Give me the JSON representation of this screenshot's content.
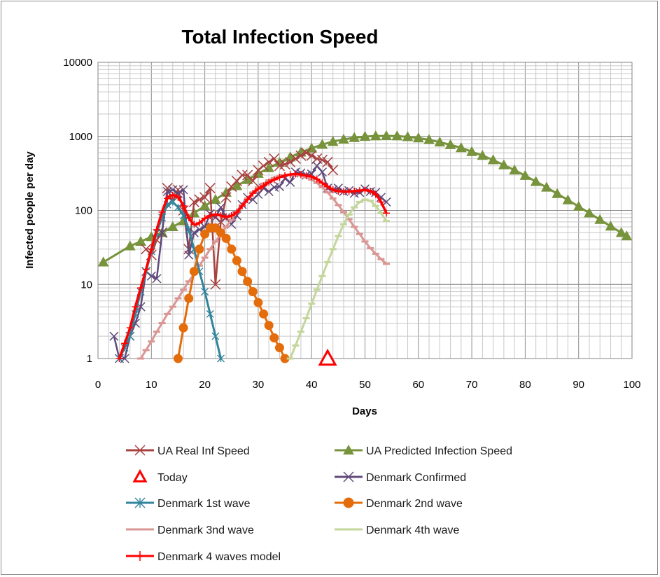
{
  "chart_data": {
    "type": "line",
    "title": "Total Infection Speed",
    "xlabel": "Days",
    "ylabel": "Infected people per day",
    "xlim": [
      0,
      100
    ],
    "ylim": [
      1,
      10000
    ],
    "y_scale": "log",
    "grid": true,
    "legend": "bottom",
    "x_ticks": [
      "0",
      "10",
      "20",
      "30",
      "40",
      "50",
      "60",
      "70",
      "80",
      "90",
      "100"
    ],
    "y_ticks": [
      "1",
      "10",
      "100",
      "1000",
      "10000"
    ],
    "series": [
      {
        "name": "UA Real Inf Speed",
        "color": "#a84240",
        "marker": "x",
        "points": [
          [
            9,
            30
          ],
          [
            10,
            25
          ],
          [
            11,
            40
          ],
          [
            12,
            50
          ],
          [
            13,
            200
          ],
          [
            14,
            130
          ],
          [
            15,
            190
          ],
          [
            16,
            100
          ],
          [
            17,
            30
          ],
          [
            18,
            130
          ],
          [
            19,
            140
          ],
          [
            20,
            150
          ],
          [
            21,
            200
          ],
          [
            22,
            10
          ],
          [
            23,
            70
          ],
          [
            24,
            150
          ],
          [
            25,
            210
          ],
          [
            26,
            250
          ],
          [
            27,
            300
          ],
          [
            28,
            300
          ],
          [
            29,
            250
          ],
          [
            30,
            350
          ],
          [
            31,
            400
          ],
          [
            32,
            450
          ],
          [
            33,
            500
          ],
          [
            34,
            400
          ],
          [
            35,
            420
          ],
          [
            36,
            450
          ],
          [
            37,
            500
          ],
          [
            38,
            550
          ],
          [
            39,
            600
          ],
          [
            40,
            550
          ],
          [
            41,
            500
          ],
          [
            42,
            480
          ],
          [
            43,
            450
          ],
          [
            44,
            350
          ]
        ]
      },
      {
        "name": "UA Predicted Infection Speed",
        "color": "#77933c",
        "marker": "triangle",
        "points": [
          [
            1,
            20
          ],
          [
            6,
            33
          ],
          [
            8,
            38
          ],
          [
            10,
            44
          ],
          [
            12,
            50
          ],
          [
            14,
            60
          ],
          [
            16,
            72
          ],
          [
            18,
            92
          ],
          [
            20,
            115
          ],
          [
            22,
            140
          ],
          [
            24,
            175
          ],
          [
            26,
            215
          ],
          [
            28,
            260
          ],
          [
            30,
            315
          ],
          [
            32,
            375
          ],
          [
            34,
            445
          ],
          [
            36,
            525
          ],
          [
            38,
            610
          ],
          [
            40,
            690
          ],
          [
            42,
            775
          ],
          [
            44,
            850
          ],
          [
            46,
            910
          ],
          [
            48,
            960
          ],
          [
            50,
            995
          ],
          [
            52,
            1010
          ],
          [
            54,
            1015
          ],
          [
            56,
            1010
          ],
          [
            58,
            985
          ],
          [
            60,
            950
          ],
          [
            62,
            900
          ],
          [
            64,
            835
          ],
          [
            66,
            770
          ],
          [
            68,
            700
          ],
          [
            70,
            620
          ],
          [
            72,
            550
          ],
          [
            74,
            480
          ],
          [
            76,
            410
          ],
          [
            78,
            350
          ],
          [
            80,
            295
          ],
          [
            82,
            245
          ],
          [
            84,
            205
          ],
          [
            86,
            168
          ],
          [
            88,
            138
          ],
          [
            90,
            113
          ],
          [
            92,
            92
          ],
          [
            94,
            75
          ],
          [
            96,
            61
          ],
          [
            98,
            50
          ],
          [
            99,
            45
          ]
        ]
      },
      {
        "name": "Today",
        "color": "#ff0000",
        "marker": "triangle-open",
        "points": [
          [
            43,
            1
          ]
        ]
      },
      {
        "name": "Denmark Confirmed",
        "color": "#604a7b",
        "marker": "x",
        "points": [
          [
            3,
            2
          ],
          [
            4,
            1
          ],
          [
            5,
            1
          ],
          [
            6,
            2
          ],
          [
            7,
            3
          ],
          [
            8,
            5
          ],
          [
            9,
            15
          ],
          [
            10,
            13
          ],
          [
            11,
            12
          ],
          [
            12,
            50
          ],
          [
            13,
            180
          ],
          [
            14,
            190
          ],
          [
            15,
            170
          ],
          [
            16,
            190
          ],
          [
            17,
            25
          ],
          [
            18,
            50
          ],
          [
            19,
            55
          ],
          [
            20,
            60
          ],
          [
            21,
            90
          ],
          [
            22,
            80
          ],
          [
            23,
            110
          ],
          [
            24,
            80
          ],
          [
            25,
            65
          ],
          [
            26,
            85
          ],
          [
            27,
            120
          ],
          [
            28,
            150
          ],
          [
            29,
            140
          ],
          [
            30,
            165
          ],
          [
            31,
            200
          ],
          [
            32,
            180
          ],
          [
            33,
            205
          ],
          [
            34,
            210
          ],
          [
            35,
            270
          ],
          [
            36,
            240
          ],
          [
            37,
            330
          ],
          [
            38,
            320
          ],
          [
            39,
            300
          ],
          [
            40,
            310
          ],
          [
            41,
            400
          ],
          [
            42,
            330
          ],
          [
            43,
            200
          ],
          [
            44,
            190
          ],
          [
            45,
            200
          ],
          [
            46,
            180
          ],
          [
            47,
            185
          ],
          [
            48,
            170
          ],
          [
            49,
            175
          ],
          [
            50,
            195
          ],
          [
            51,
            180
          ],
          [
            52,
            175
          ],
          [
            53,
            150
          ],
          [
            54,
            130
          ]
        ]
      },
      {
        "name": "Denmark 1st wave",
        "color": "#31859c",
        "marker": "star",
        "points": [
          [
            4,
            1
          ],
          [
            5,
            1.4
          ],
          [
            6,
            2
          ],
          [
            7,
            4
          ],
          [
            8,
            8
          ],
          [
            9,
            15
          ],
          [
            10,
            28
          ],
          [
            11,
            50
          ],
          [
            12,
            80
          ],
          [
            13,
            120
          ],
          [
            14,
            130
          ],
          [
            15,
            110
          ],
          [
            16,
            85
          ],
          [
            17,
            55
          ],
          [
            18,
            30
          ],
          [
            19,
            15
          ],
          [
            20,
            8
          ],
          [
            21,
            4
          ],
          [
            22,
            2
          ],
          [
            23,
            1
          ]
        ]
      },
      {
        "name": "Denmark 2nd wave",
        "color": "#e46c0a",
        "marker": "circle",
        "points": [
          [
            15,
            1
          ],
          [
            16,
            2.6
          ],
          [
            17,
            6.5
          ],
          [
            18,
            15
          ],
          [
            19,
            30
          ],
          [
            20,
            48
          ],
          [
            21,
            58
          ],
          [
            22,
            58
          ],
          [
            23,
            50
          ],
          [
            24,
            42
          ],
          [
            25,
            30
          ],
          [
            26,
            21
          ],
          [
            27,
            15
          ],
          [
            28,
            11
          ],
          [
            29,
            8
          ],
          [
            30,
            5.7
          ],
          [
            31,
            4
          ],
          [
            32,
            2.8
          ],
          [
            33,
            1.9
          ],
          [
            34,
            1.4
          ],
          [
            35,
            1
          ]
        ]
      },
      {
        "name": "Denmark 3nd wave",
        "color": "#d99694",
        "marker": "dash",
        "points": [
          [
            8,
            1
          ],
          [
            9,
            1.3
          ],
          [
            10,
            1.7
          ],
          [
            11,
            2.3
          ],
          [
            12,
            3
          ],
          [
            13,
            4
          ],
          [
            14,
            5
          ],
          [
            15,
            6.5
          ],
          [
            16,
            8.5
          ],
          [
            17,
            11
          ],
          [
            18,
            14
          ],
          [
            19,
            18
          ],
          [
            20,
            23
          ],
          [
            21,
            30
          ],
          [
            22,
            38
          ],
          [
            23,
            48
          ],
          [
            24,
            60
          ],
          [
            25,
            75
          ],
          [
            26,
            95
          ],
          [
            27,
            118
          ],
          [
            28,
            145
          ],
          [
            29,
            175
          ],
          [
            30,
            205
          ],
          [
            31,
            230
          ],
          [
            32,
            255
          ],
          [
            33,
            275
          ],
          [
            34,
            290
          ],
          [
            35,
            300
          ],
          [
            36,
            305
          ],
          [
            37,
            300
          ],
          [
            38,
            295
          ],
          [
            39,
            280
          ],
          [
            40,
            260
          ],
          [
            41,
            235
          ],
          [
            42,
            205
          ],
          [
            43,
            175
          ],
          [
            44,
            145
          ],
          [
            45,
            118
          ],
          [
            46,
            95
          ],
          [
            47,
            76
          ],
          [
            48,
            60
          ],
          [
            49,
            48
          ],
          [
            50,
            38
          ],
          [
            51,
            31
          ],
          [
            52,
            26
          ],
          [
            53,
            22
          ],
          [
            54,
            19
          ]
        ]
      },
      {
        "name": "Denmark 4th wave",
        "color": "#c3d69b",
        "marker": "dash",
        "points": [
          [
            36,
            1
          ],
          [
            37,
            1.5
          ],
          [
            38,
            2.3
          ],
          [
            39,
            3.5
          ],
          [
            40,
            5.5
          ],
          [
            41,
            8.5
          ],
          [
            42,
            13
          ],
          [
            43,
            20
          ],
          [
            44,
            30
          ],
          [
            45,
            45
          ],
          [
            46,
            65
          ],
          [
            47,
            88
          ],
          [
            48,
            110
          ],
          [
            49,
            130
          ],
          [
            50,
            140
          ],
          [
            51,
            135
          ],
          [
            52,
            115
          ],
          [
            53,
            92
          ],
          [
            54,
            72
          ]
        ]
      },
      {
        "name": "Denmark 4 waves model",
        "color": "#ff0000",
        "marker": "plus",
        "points": [
          [
            4,
            1
          ],
          [
            5,
            1.6
          ],
          [
            6,
            2.6
          ],
          [
            7,
            5
          ],
          [
            8,
            9
          ],
          [
            9,
            16
          ],
          [
            10,
            30
          ],
          [
            11,
            55
          ],
          [
            12,
            95
          ],
          [
            13,
            145
          ],
          [
            14,
            160
          ],
          [
            15,
            150
          ],
          [
            16,
            115
          ],
          [
            17,
            80
          ],
          [
            18,
            65
          ],
          [
            19,
            68
          ],
          [
            20,
            78
          ],
          [
            21,
            85
          ],
          [
            22,
            88
          ],
          [
            23,
            85
          ],
          [
            24,
            82
          ],
          [
            25,
            85
          ],
          [
            26,
            95
          ],
          [
            27,
            115
          ],
          [
            28,
            140
          ],
          [
            29,
            170
          ],
          [
            30,
            195
          ],
          [
            31,
            215
          ],
          [
            32,
            240
          ],
          [
            33,
            260
          ],
          [
            34,
            280
          ],
          [
            35,
            295
          ],
          [
            36,
            305
          ],
          [
            37,
            310
          ],
          [
            38,
            305
          ],
          [
            39,
            295
          ],
          [
            40,
            285
          ],
          [
            41,
            265
          ],
          [
            42,
            235
          ],
          [
            43,
            210
          ],
          [
            44,
            190
          ],
          [
            45,
            182
          ],
          [
            46,
            180
          ],
          [
            47,
            180
          ],
          [
            48,
            182
          ],
          [
            49,
            185
          ],
          [
            50,
            188
          ],
          [
            51,
            182
          ],
          [
            52,
            165
          ],
          [
            53,
            130
          ],
          [
            54,
            92
          ]
        ]
      }
    ]
  }
}
